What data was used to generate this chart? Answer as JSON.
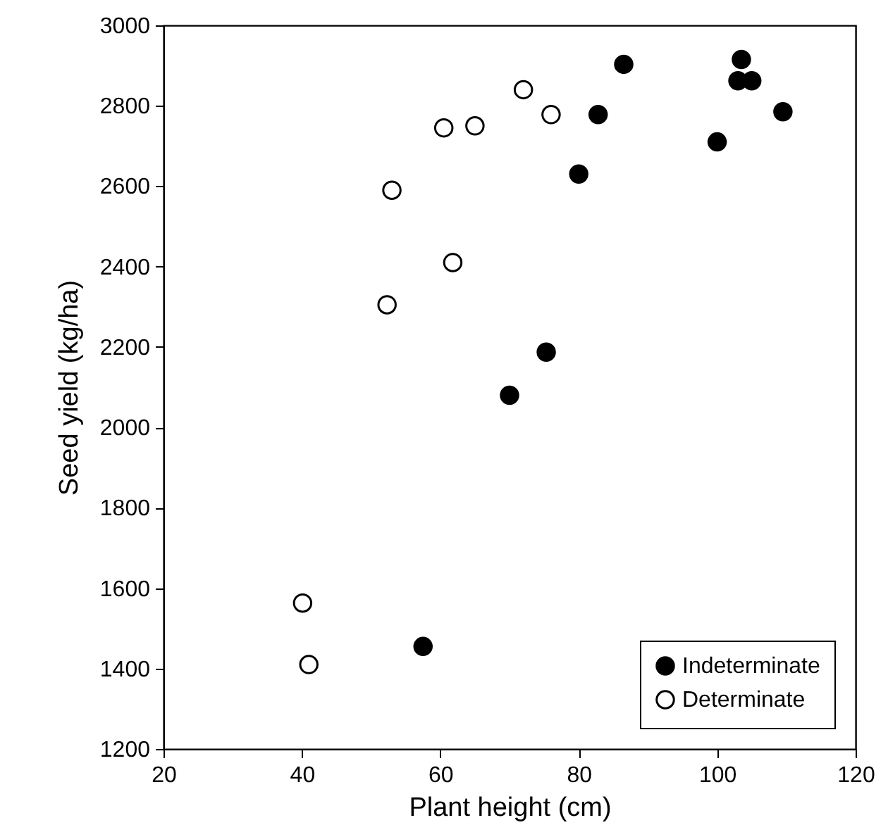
{
  "chart_data": {
    "type": "scatter",
    "xlabel": "Plant height (cm)",
    "ylabel": "Seed yield (kg/ha)",
    "xlim": [
      20,
      120
    ],
    "xticks": [
      20,
      40,
      60,
      80,
      100,
      120
    ],
    "ylim": [
      1200,
      3000
    ],
    "yticks": [
      1200,
      1400,
      1600,
      1800,
      2000,
      2200,
      2400,
      2600,
      2800,
      3000
    ],
    "grid": false,
    "legend": "bottom right",
    "series": [
      {
        "name": "Indeterminate",
        "color": "#000000",
        "x": [
          86.5,
          103.5,
          103,
          105,
          82.8,
          109.5,
          100,
          80,
          75.3,
          70,
          57.5
        ],
        "values": [
          2903,
          2915,
          2862,
          2862,
          2778,
          2785,
          2710,
          2630,
          2187,
          2080,
          1455
        ]
      },
      {
        "name": "Determinate",
        "color": "#ffffff",
        "x": [
          72,
          76,
          60.5,
          65,
          53,
          61.8,
          52.3,
          40.1,
          41
        ],
        "values": [
          2840,
          2778,
          2745,
          2750,
          2590,
          2410,
          2305,
          1563,
          1410
        ]
      }
    ]
  }
}
